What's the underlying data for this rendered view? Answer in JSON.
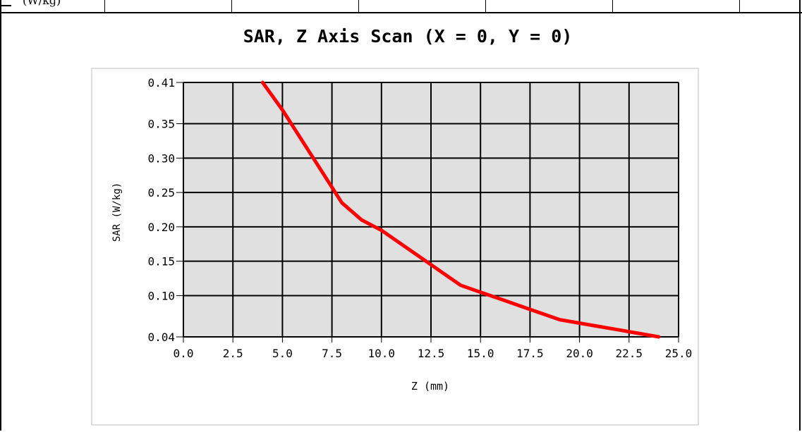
{
  "header": {
    "clipped_text": "(W/kg)"
  },
  "chart_data": {
    "type": "line",
    "title": "SAR, Z Axis Scan (X = 0, Y = 0)",
    "xlabel": "Z (mm)",
    "ylabel": "SAR (W/kg)",
    "xlim": [
      0,
      25
    ],
    "ylim": [
      0.04,
      0.41
    ],
    "x_ticks": [
      "0.0",
      "2.5",
      "5.0",
      "7.5",
      "10.0",
      "12.5",
      "15.0",
      "17.5",
      "20.0",
      "22.5",
      "25.0"
    ],
    "y_ticks": [
      "0.41",
      "0.35",
      "0.30",
      "0.25",
      "0.20",
      "0.15",
      "0.10",
      "0.04"
    ],
    "y_tick_values": [
      0.41,
      0.35,
      0.3,
      0.25,
      0.2,
      0.15,
      0.1,
      0.04
    ],
    "grid": true,
    "series": [
      {
        "color": "#ff0000",
        "x": [
          4.0,
          5.0,
          6.0,
          7.0,
          8.0,
          9.0,
          10.0,
          11.0,
          12.0,
          13.0,
          14.0,
          15.0,
          16.0,
          17.0,
          18.0,
          19.0,
          20.0,
          21.0,
          22.0,
          23.0,
          24.0
        ],
        "y": [
          0.41,
          0.37,
          0.325,
          0.28,
          0.235,
          0.21,
          0.195,
          0.175,
          0.155,
          0.135,
          0.115,
          0.105,
          0.095,
          0.085,
          0.075,
          0.065,
          0.06,
          0.055,
          0.05,
          0.045,
          0.04
        ]
      }
    ],
    "plot_background": "#e0e0e0",
    "grid_color": "#000000"
  }
}
